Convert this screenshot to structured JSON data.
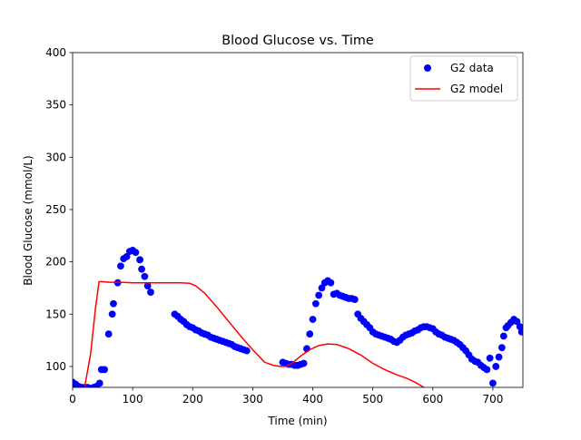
{
  "chart_data": {
    "type": "scatter",
    "title": "Blood Glucose vs. Time",
    "xlabel": "Time (min)",
    "ylabel": "Blood Glucose (mmol/L)",
    "xlim": [
      0,
      750
    ],
    "ylim": [
      80,
      400
    ],
    "xticks": [
      0,
      100,
      200,
      300,
      400,
      500,
      600,
      700
    ],
    "yticks": [
      100,
      150,
      200,
      250,
      300,
      350,
      400
    ],
    "grid": false,
    "legend_position": "top-right",
    "series": [
      {
        "name": "G2 data",
        "kind": "scatter",
        "color": "#0000ff",
        "points": [
          [
            0,
            85
          ],
          [
            5,
            83
          ],
          [
            10,
            81
          ],
          [
            15,
            80
          ],
          [
            20,
            80
          ],
          [
            25,
            80
          ],
          [
            30,
            79
          ],
          [
            35,
            80
          ],
          [
            40,
            81
          ],
          [
            45,
            84
          ],
          [
            48,
            97
          ],
          [
            53,
            97
          ],
          [
            60,
            131
          ],
          [
            66,
            150
          ],
          [
            68,
            160
          ],
          [
            75,
            180
          ],
          [
            80,
            196
          ],
          [
            85,
            203
          ],
          [
            90,
            205
          ],
          [
            95,
            210
          ],
          [
            100,
            211
          ],
          [
            105,
            209
          ],
          [
            112,
            202
          ],
          [
            115,
            193
          ],
          [
            120,
            186
          ],
          [
            125,
            177
          ],
          [
            130,
            171
          ],
          [
            170,
            150
          ],
          [
            175,
            148
          ],
          [
            180,
            145
          ],
          [
            185,
            143
          ],
          [
            190,
            140
          ],
          [
            195,
            138
          ],
          [
            200,
            137
          ],
          [
            205,
            135
          ],
          [
            210,
            134
          ],
          [
            215,
            132
          ],
          [
            220,
            131
          ],
          [
            225,
            130
          ],
          [
            230,
            128
          ],
          [
            235,
            127
          ],
          [
            240,
            126
          ],
          [
            245,
            125
          ],
          [
            250,
            124
          ],
          [
            255,
            123
          ],
          [
            260,
            122
          ],
          [
            265,
            121
          ],
          [
            270,
            119
          ],
          [
            275,
            118
          ],
          [
            280,
            117
          ],
          [
            285,
            116
          ],
          [
            290,
            115
          ],
          [
            350,
            104
          ],
          [
            355,
            103
          ],
          [
            360,
            102
          ],
          [
            365,
            102
          ],
          [
            370,
            101
          ],
          [
            375,
            101
          ],
          [
            380,
            102
          ],
          [
            385,
            103
          ],
          [
            390,
            117
          ],
          [
            395,
            131
          ],
          [
            400,
            145
          ],
          [
            405,
            160
          ],
          [
            410,
            168
          ],
          [
            415,
            175
          ],
          [
            420,
            180
          ],
          [
            425,
            182
          ],
          [
            430,
            180
          ],
          [
            435,
            169
          ],
          [
            440,
            170
          ],
          [
            445,
            168
          ],
          [
            450,
            167
          ],
          [
            455,
            166
          ],
          [
            460,
            165
          ],
          [
            465,
            165
          ],
          [
            470,
            164
          ],
          [
            475,
            150
          ],
          [
            480,
            146
          ],
          [
            485,
            143
          ],
          [
            490,
            140
          ],
          [
            495,
            137
          ],
          [
            500,
            133
          ],
          [
            505,
            131
          ],
          [
            510,
            130
          ],
          [
            515,
            129
          ],
          [
            520,
            128
          ],
          [
            525,
            127
          ],
          [
            530,
            126
          ],
          [
            535,
            124
          ],
          [
            540,
            123
          ],
          [
            545,
            125
          ],
          [
            550,
            128
          ],
          [
            555,
            130
          ],
          [
            560,
            131
          ],
          [
            565,
            132
          ],
          [
            570,
            134
          ],
          [
            575,
            135
          ],
          [
            580,
            137
          ],
          [
            585,
            138
          ],
          [
            590,
            138
          ],
          [
            595,
            137
          ],
          [
            600,
            136
          ],
          [
            605,
            133
          ],
          [
            610,
            131
          ],
          [
            615,
            130
          ],
          [
            620,
            128
          ],
          [
            625,
            127
          ],
          [
            630,
            126
          ],
          [
            635,
            125
          ],
          [
            640,
            123
          ],
          [
            645,
            121
          ],
          [
            650,
            118
          ],
          [
            655,
            115
          ],
          [
            660,
            111
          ],
          [
            665,
            107
          ],
          [
            670,
            105
          ],
          [
            675,
            104
          ],
          [
            680,
            101
          ],
          [
            685,
            99
          ],
          [
            690,
            97
          ],
          [
            695,
            108
          ],
          [
            700,
            84
          ],
          [
            705,
            100
          ],
          [
            710,
            109
          ],
          [
            715,
            118
          ],
          [
            718,
            129
          ],
          [
            722,
            137
          ],
          [
            725,
            139
          ],
          [
            730,
            142
          ],
          [
            735,
            145
          ],
          [
            740,
            143
          ],
          [
            745,
            138
          ],
          [
            748,
            133
          ]
        ]
      },
      {
        "name": "G2 model",
        "kind": "line",
        "color": "#ff0000",
        "points": [
          [
            20,
            80
          ],
          [
            30,
            112
          ],
          [
            38,
            155
          ],
          [
            44,
            181
          ],
          [
            50,
            181
          ],
          [
            60,
            180.5
          ],
          [
            80,
            180.5
          ],
          [
            100,
            180
          ],
          [
            120,
            180
          ],
          [
            150,
            180
          ],
          [
            180,
            180
          ],
          [
            195,
            179.5
          ],
          [
            205,
            177
          ],
          [
            220,
            170
          ],
          [
            240,
            157
          ],
          [
            260,
            143
          ],
          [
            280,
            129
          ],
          [
            300,
            116
          ],
          [
            320,
            104
          ],
          [
            335,
            101
          ],
          [
            345,
            100
          ],
          [
            355,
            100
          ],
          [
            365,
            103
          ],
          [
            380,
            110
          ],
          [
            395,
            116
          ],
          [
            410,
            120
          ],
          [
            425,
            121.5
          ],
          [
            440,
            121
          ],
          [
            460,
            117
          ],
          [
            480,
            111
          ],
          [
            500,
            103
          ],
          [
            520,
            97
          ],
          [
            540,
            92
          ],
          [
            555,
            89
          ],
          [
            570,
            85
          ],
          [
            585,
            80
          ]
        ]
      }
    ]
  }
}
